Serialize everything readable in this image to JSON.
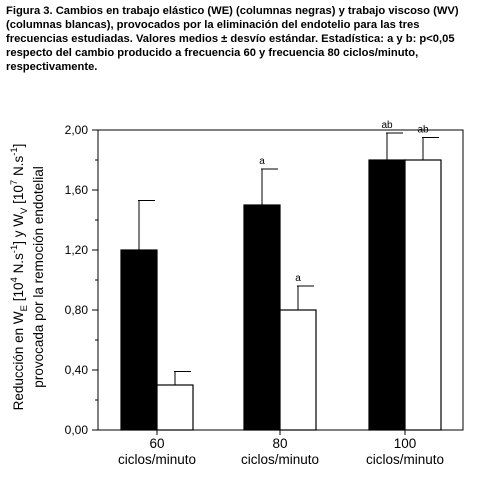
{
  "caption": "Figura 3. Cambios en trabajo elástico (WE) (columnas negras) y trabajo viscoso (WV)\n(columnas blancas), provocados por la eliminación del endotelio para las tres\nfrecuencias estudiadas. Valores medios ± desvío estándar. Estadística: a y b: p<0,05\nrespecto del cambio producido a frecuencia 60 y frecuencia 80 ciclos/minuto,\nrespectivamente.",
  "chart_data": {
    "type": "bar",
    "categories": [
      {
        "value": "60",
        "unit": "ciclos/minuto"
      },
      {
        "value": "80",
        "unit": "ciclos/minuto"
      },
      {
        "value": "100",
        "unit": "ciclos/minuto"
      }
    ],
    "series": [
      {
        "fill": "#000000",
        "values": [
          1.2,
          1.5,
          1.8
        ],
        "errors": [
          0.33,
          0.24,
          0.18
        ],
        "annotations": [
          "",
          "a",
          "ab"
        ]
      },
      {
        "fill": "#ffffff",
        "values": [
          0.3,
          0.8,
          1.8
        ],
        "errors": [
          0.09,
          0.16,
          0.15
        ],
        "annotations": [
          "",
          "a",
          "ab"
        ]
      }
    ],
    "ylabel_line1": "Reducción en W_E [10^4 N.s^-1]  y W_V [10^7 N.s^-1]",
    "ylabel_line2": "provocada por la remoción endotelial",
    "ylim": [
      0,
      2.0
    ],
    "yticks": [
      "0,00",
      "0,40",
      "0,80",
      "1,20",
      "1,60",
      "2,00"
    ],
    "ytick_values": [
      0,
      0.4,
      0.8,
      1.2,
      1.6,
      2.0
    ],
    "grid": false,
    "legend": "none"
  }
}
